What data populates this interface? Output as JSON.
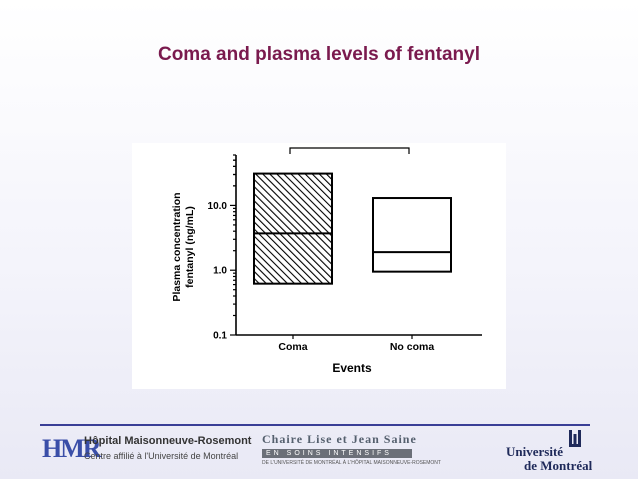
{
  "slide": {
    "title": "Coma and plasma levels of fentanyl"
  },
  "colors": {
    "title": "#7a1a4e",
    "footer_rule": "#3a3f96",
    "axis": "#000000"
  },
  "chart_data": {
    "type": "box",
    "title": "",
    "xlabel": "Events",
    "ylabel": "Plasma concentration\nfentanyl (ng/mL)",
    "ylabel_lines": [
      "Plasma concentration",
      "fentanyl (ng/mL)"
    ],
    "yscale": "log",
    "ylim": [
      0.1,
      60
    ],
    "yticks": [
      0.1,
      1.0,
      10.0
    ],
    "ytick_labels": [
      "0.1",
      "1.0",
      "10.0"
    ],
    "categories": [
      "Coma",
      "No coma"
    ],
    "boxes": [
      {
        "category": "Coma",
        "q1": 0.62,
        "median": 3.7,
        "q3": 31,
        "fill": "hatched"
      },
      {
        "category": "No coma",
        "q1": 0.95,
        "median": 1.9,
        "q3": 13,
        "fill": "white"
      }
    ],
    "significance_bracket": {
      "between": [
        "Coma",
        "No coma"
      ],
      "label": ""
    },
    "grid": false,
    "legend": "none"
  },
  "footer": {
    "hmr_mark": "HMR",
    "hmr_name": "Hôpital Maisonneuve-Rosemont",
    "hmr_sub": "Centre affilié à l'Université de Montréal",
    "chaire_title": "Chaire Lise et Jean Saine",
    "chaire_band": "EN SOINS INTENSIFS",
    "chaire_sub": "DE L'UNIVERSITÉ DE MONTRÉAL À L'HÔPITAL MAISONNEUVE-ROSEMONT",
    "udem_line1": "Université",
    "udem_line2": "de Montréal"
  }
}
